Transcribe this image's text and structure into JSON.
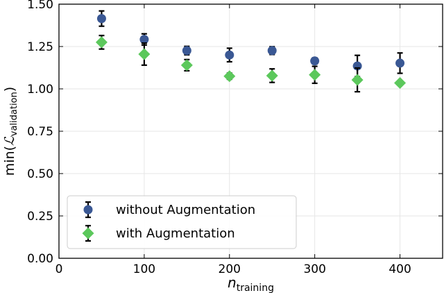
{
  "chart_data": {
    "type": "scatter",
    "xlabel": {
      "main": "n",
      "sub": "training"
    },
    "ylabel": {
      "prefix": "min(",
      "main": "ℒ",
      "sub": "validation",
      "suffix": ")"
    },
    "xlim": [
      0,
      450
    ],
    "ylim": [
      0.0,
      1.5
    ],
    "xticks": [
      0,
      100,
      200,
      300,
      400
    ],
    "xtick_labels": [
      "0",
      "100",
      "200",
      "300",
      "400"
    ],
    "yticks": [
      0.0,
      0.25,
      0.5,
      0.75,
      1.0,
      1.25,
      1.5
    ],
    "ytick_labels": [
      "0.00",
      "0.25",
      "0.50",
      "0.75",
      "1.00",
      "1.25",
      "1.50"
    ],
    "grid": true,
    "legend_position": "bottom-left",
    "series": [
      {
        "name": "without Augmentation",
        "marker": "circle",
        "color": "#3a5894",
        "x": [
          50,
          100,
          150,
          200,
          250,
          300,
          350,
          400
        ],
        "y": [
          1.415,
          1.292,
          1.226,
          1.2,
          1.226,
          1.165,
          1.135,
          1.152
        ],
        "yerr": [
          0.045,
          0.033,
          0.025,
          0.04,
          0.023,
          0.018,
          0.063,
          0.06
        ]
      },
      {
        "name": "with Augmentation",
        "marker": "diamond",
        "color": "#5cc85c",
        "x": [
          50,
          100,
          150,
          200,
          250,
          300,
          350,
          400
        ],
        "y": [
          1.275,
          1.205,
          1.14,
          1.075,
          1.078,
          1.083,
          1.053,
          1.035
        ],
        "yerr": [
          0.04,
          0.065,
          0.033,
          0.018,
          0.04,
          0.05,
          0.07,
          0.0
        ]
      }
    ]
  }
}
